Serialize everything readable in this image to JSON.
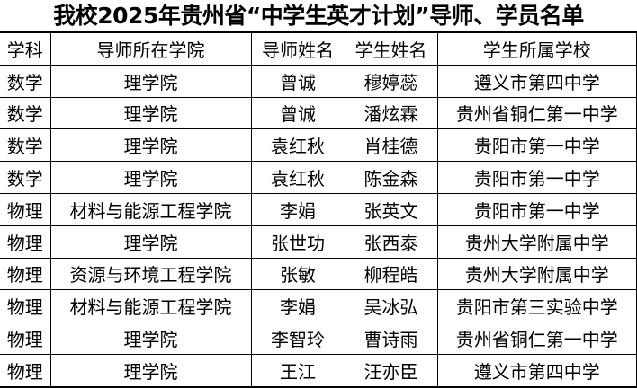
{
  "title": "我校2025年贵州省“中学生英才计划”导师、学员名单",
  "headers": [
    "学科",
    "导师所在学院",
    "导师姓名",
    "学生姓名",
    "学生所属学校"
  ],
  "rows": [
    [
      "数学",
      "理学院",
      "曾诚",
      "穆婷蕊",
      "遵义市第四中学"
    ],
    [
      "数学",
      "理学院",
      "曾诚",
      "潘炫霖",
      "贵州省铜仁第一中学"
    ],
    [
      "数学",
      "理学院",
      "袁红秋",
      "肖桂德",
      "贵阳市第一中学"
    ],
    [
      "数学",
      "理学院",
      "袁红秋",
      "陈金森",
      "贵阳市第一中学"
    ],
    [
      "物理",
      "材料与能源工程学院",
      "李娟",
      "张英文",
      "贵阳市第一中学"
    ],
    [
      "物理",
      "理学院",
      "张世功",
      "张西泰",
      "贵州大学附属中学"
    ],
    [
      "物理",
      "资源与环境工程学院",
      "张敏",
      "柳程皓",
      "贵州大学附属中学"
    ],
    [
      "物理",
      "材料与能源工程学院",
      "李娟",
      "吴冰弘",
      "贵阳市第三实验中学"
    ],
    [
      "物理",
      "理学院",
      "李智玲",
      "曹诗雨",
      "贵州省铜仁第一中学"
    ],
    [
      "物理",
      "理学院",
      "王江",
      "汪亦臣",
      "遵义市第四中学"
    ]
  ]
}
